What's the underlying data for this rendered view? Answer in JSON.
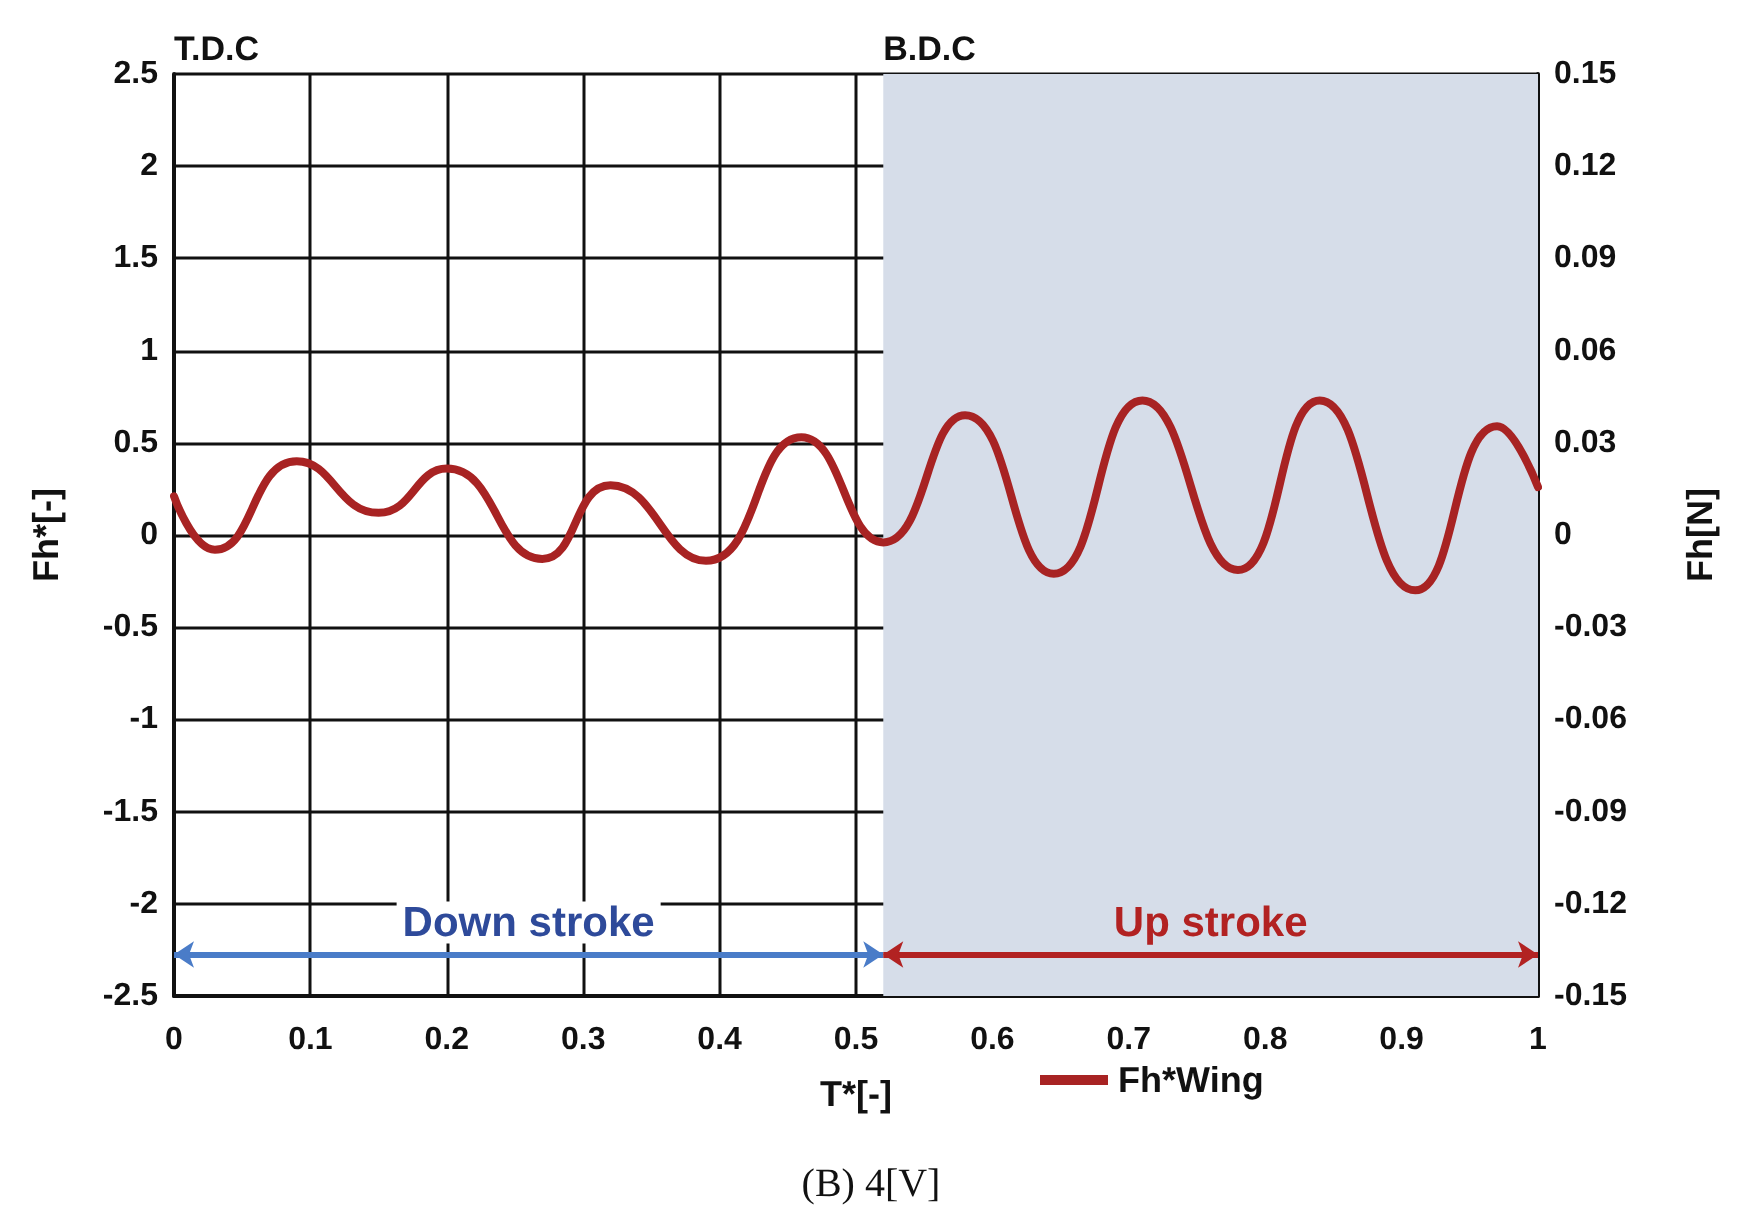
{
  "chart_data": {
    "type": "line",
    "xlabel": "T*[-]",
    "ylabel": "Fh*[-]",
    "y2label": "Fh[N]",
    "annotations": [
      "T.D.C",
      "B.D.C",
      "Down stroke",
      "Up stroke",
      "(B) 4[V]"
    ],
    "x": [
      0,
      0.03,
      0.09,
      0.15,
      0.2,
      0.27,
      0.32,
      0.39,
      0.46,
      0.52,
      0.58,
      0.645,
      0.71,
      0.78,
      0.84,
      0.91,
      0.97,
      1
    ],
    "series": [
      {
        "name": "Fh*Wing",
        "color": "#a82323",
        "values": [
          0.21,
          -0.08,
          0.4,
          0.12,
          0.36,
          -0.13,
          0.27,
          -0.14,
          0.53,
          -0.04,
          0.65,
          -0.21,
          0.73,
          -0.19,
          0.73,
          -0.3,
          0.59,
          0.26
        ]
      }
    ],
    "xlim": [
      0,
      1
    ],
    "xticks": [
      0,
      0.1,
      0.2,
      0.3,
      0.4,
      0.5,
      0.6,
      0.7,
      0.8,
      0.9,
      1
    ],
    "ylim": [
      -2.5,
      2.5
    ],
    "yticks": [
      -2.5,
      -2,
      -1.5,
      -1,
      -0.5,
      0,
      0.5,
      1,
      1.5,
      2,
      2.5
    ],
    "y2lim": [
      -0.15,
      0.15
    ],
    "y2ticks": [
      -0.15,
      -0.12,
      -0.09,
      -0.06,
      -0.03,
      0,
      0.03,
      0.06,
      0.09,
      0.12,
      0.15
    ],
    "bands": [
      {
        "axis": "x",
        "from": 0.52,
        "to": 1,
        "color": "#d6dde9"
      }
    ],
    "grid": true,
    "legend": "bottom",
    "marker": "none",
    "line_style": "solid"
  }
}
